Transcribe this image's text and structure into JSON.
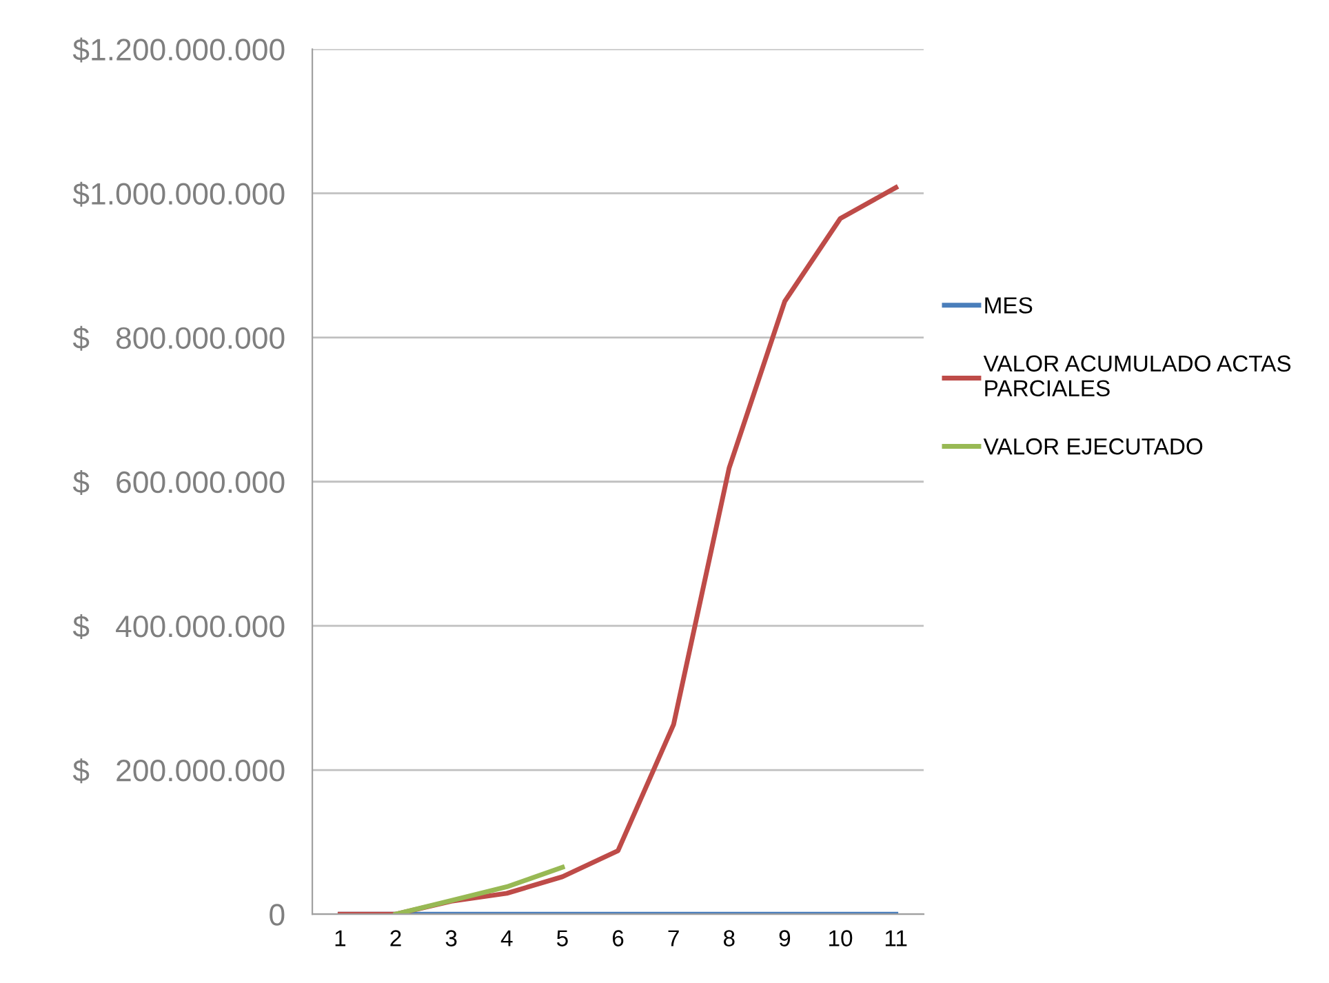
{
  "chart_data": {
    "type": "line",
    "categories": [
      "1",
      "2",
      "3",
      "4",
      "5",
      "6",
      "7",
      "8",
      "9",
      "10",
      "11"
    ],
    "series": [
      {
        "name": "MES",
        "color": "#4a7ebb",
        "values": [
          0,
          0,
          0,
          0,
          0,
          0,
          0,
          0,
          0,
          0,
          0
        ]
      },
      {
        "name": "VALOR ACUMULADO ACTAS\nPARCIALES",
        "color": "#be4b48",
        "values": [
          0,
          0,
          18000000,
          29000000,
          52000000,
          88000000,
          263000000,
          619000000,
          850000000,
          965000000,
          1008000000
        ]
      },
      {
        "name": "VALOR EJECUTADO",
        "color": "#98b954",
        "values": [
          null,
          0,
          19000000,
          38000000,
          65000000,
          null,
          null,
          null,
          null,
          null,
          null
        ]
      }
    ],
    "ylim": [
      0,
      1200000000
    ],
    "yticks": [
      {
        "value": 0,
        "label": "0"
      },
      {
        "value": 200000000,
        "label": "$   200.000.000"
      },
      {
        "value": 400000000,
        "label": "$   400.000.000"
      },
      {
        "value": 600000000,
        "label": "$   600.000.000"
      },
      {
        "value": 800000000,
        "label": "$   800.000.000"
      },
      {
        "value": 1000000000,
        "label": "$1.000.000.000"
      },
      {
        "value": 1200000000,
        "label": "$1.200.000.000"
      }
    ],
    "grid": "y",
    "legend": "right",
    "marker": "none",
    "line_style": "solid"
  }
}
